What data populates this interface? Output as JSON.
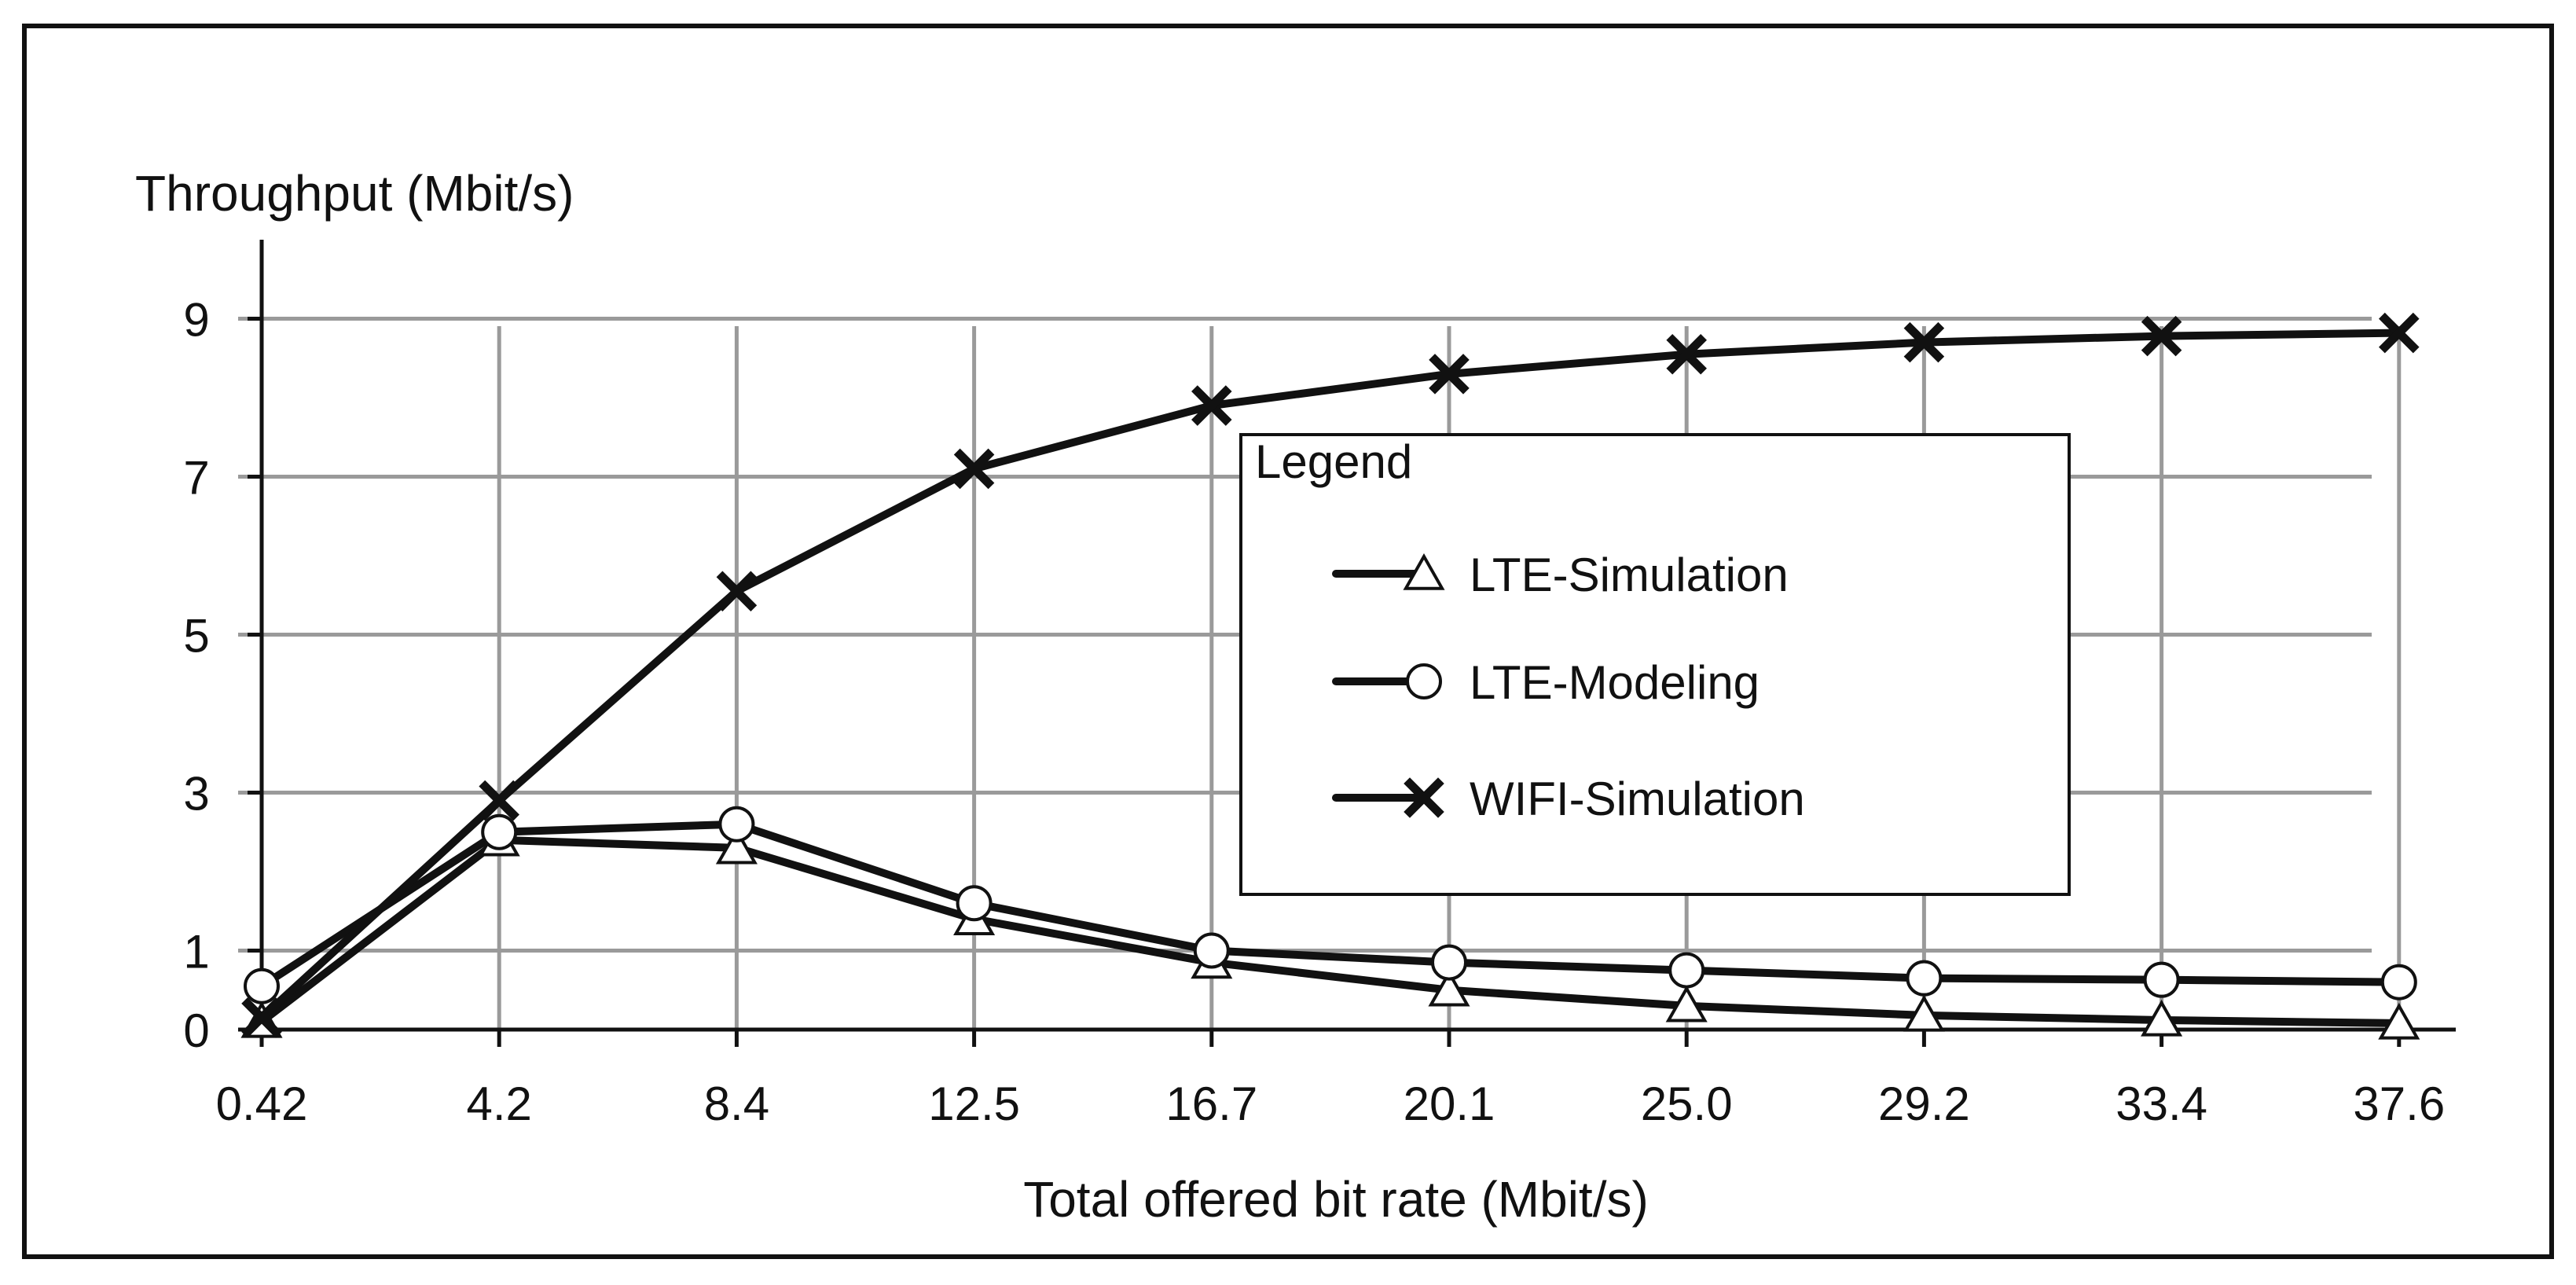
{
  "chart_data": {
    "type": "line",
    "title": "",
    "ylabel": "Throughput (Mbit/s)",
    "xlabel": "Total offered bit rate (Mbit/s)",
    "categories": [
      "0.42",
      "4.2",
      "8.4",
      "12.5",
      "16.7",
      "20.1",
      "25.0",
      "29.2",
      "33.4",
      "37.6"
    ],
    "yticks": [
      "0",
      "1",
      "3",
      "5",
      "7",
      "9"
    ],
    "ylim": [
      0,
      10
    ],
    "grid": true,
    "legend": {
      "title": "Legend",
      "placement": "center-right"
    },
    "series": [
      {
        "name": "LTE-Simulation",
        "marker": "triangle",
        "values": [
          0.1,
          2.4,
          2.3,
          1.4,
          0.85,
          0.5,
          0.3,
          0.18,
          0.12,
          0.08
        ]
      },
      {
        "name": "LTE-Modeling",
        "marker": "circle",
        "values": [
          0.55,
          2.5,
          2.6,
          1.6,
          1.0,
          0.85,
          0.75,
          0.65,
          0.63,
          0.6
        ]
      },
      {
        "name": "WIFI-Simulation",
        "marker": "cross",
        "values": [
          0.15,
          2.9,
          5.55,
          7.1,
          7.9,
          8.3,
          8.55,
          8.7,
          8.78,
          8.82
        ]
      }
    ]
  }
}
